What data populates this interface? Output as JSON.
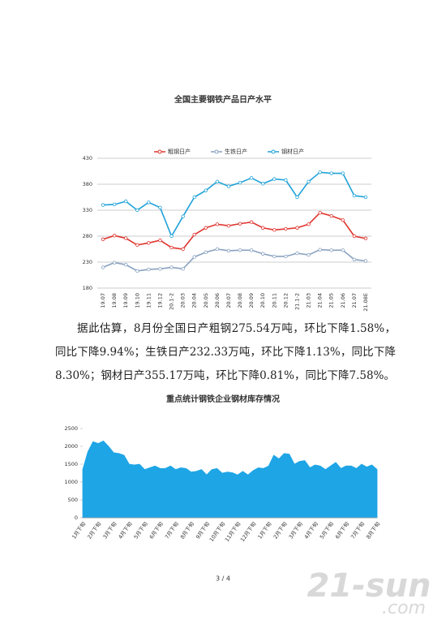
{
  "chart_data": [
    {
      "type": "line",
      "title": "全国主要钢铁产品日产水平",
      "categories": [
        "19.07",
        "19.08",
        "19.09",
        "19.10",
        "19.11",
        "19.12",
        "20.1-2",
        "20.03",
        "20.04",
        "20.05",
        "20.06",
        "20.07",
        "20.08",
        "20.09",
        "20.10",
        "20.11",
        "20.12",
        "21.1-2",
        "21.03",
        "21.04",
        "21.05",
        "21.06",
        "21.07",
        "21.08E"
      ],
      "series": [
        {
          "name": "粗钢日产",
          "color": "#e0352f",
          "values": [
            274,
            281,
            276,
            263,
            267,
            272,
            258,
            255,
            283,
            296,
            303,
            300,
            304,
            307,
            296,
            292,
            294,
            296,
            303,
            325,
            319,
            311,
            280,
            275.54
          ]
        },
        {
          "name": "生铁日产",
          "color": "#8aa2c0",
          "values": [
            220,
            229,
            225,
            213,
            216,
            217,
            220,
            217,
            240,
            249,
            255,
            252,
            253,
            253,
            246,
            241,
            241,
            247,
            244,
            254,
            253,
            253,
            235,
            232.33
          ]
        },
        {
          "name": "钢材日产",
          "color": "#1fa2d9",
          "values": [
            340,
            341,
            347,
            330,
            345,
            335,
            280,
            318,
            355,
            368,
            385,
            376,
            383,
            392,
            381,
            390,
            388,
            355,
            385,
            403,
            401,
            401,
            358,
            355.17
          ]
        }
      ],
      "ylim": [
        180,
        430
      ],
      "yticks": [
        180,
        230,
        280,
        330,
        380,
        430
      ],
      "grid": true,
      "legend": "top"
    },
    {
      "type": "area",
      "title": "重点统计钢铁企业钢材库存情况",
      "color": "#1ea5e6",
      "categories": [
        "1月下旬",
        null,
        null,
        "2月下旬",
        null,
        null,
        "3月下旬",
        null,
        null,
        "4月下旬",
        null,
        null,
        "5月下旬",
        null,
        null,
        "6月下旬",
        null,
        null,
        "7月下旬",
        null,
        null,
        "8月下旬",
        null,
        null,
        "9月下旬",
        null,
        null,
        "10月下旬",
        null,
        null,
        "11月下旬",
        null,
        null,
        "12月下旬",
        null,
        null,
        "1月下旬",
        null,
        null,
        "2月下旬",
        null,
        null,
        "3月下旬",
        null,
        null,
        "4月下旬",
        null,
        null,
        "5月下旬",
        null,
        null,
        "6月下旬",
        null,
        null,
        "7月下旬",
        null,
        null,
        "8月下旬"
      ],
      "values": [
        1350,
        1850,
        2130,
        2080,
        2150,
        2000,
        1820,
        1800,
        1750,
        1500,
        1480,
        1500,
        1350,
        1400,
        1450,
        1380,
        1380,
        1450,
        1350,
        1400,
        1380,
        1280,
        1300,
        1350,
        1200,
        1350,
        1380,
        1250,
        1280,
        1260,
        1200,
        1300,
        1200,
        1320,
        1400,
        1380,
        1450,
        1750,
        1650,
        1800,
        1780,
        1500,
        1580,
        1600,
        1400,
        1480,
        1450,
        1350,
        1450,
        1550,
        1380,
        1450,
        1450,
        1380,
        1500,
        1420,
        1480,
        1350
      ],
      "ylim": [
        0,
        2500
      ],
      "yticks": [
        0,
        500,
        1000,
        1500,
        2000,
        2500
      ],
      "grid": false
    }
  ],
  "paragraph": "据此估算，8月份全国日产粗钢275.54万吨，环比下降1.58%，同比下降9.94%；生铁日产232.33万吨，环比下降1.13%，同比下降8.30%；钢材日产355.17万吨，环比下降0.81%，同比下降7.58%。",
  "page_number": "3 / 4",
  "watermark": [
    "21-sun",
    ".com"
  ]
}
